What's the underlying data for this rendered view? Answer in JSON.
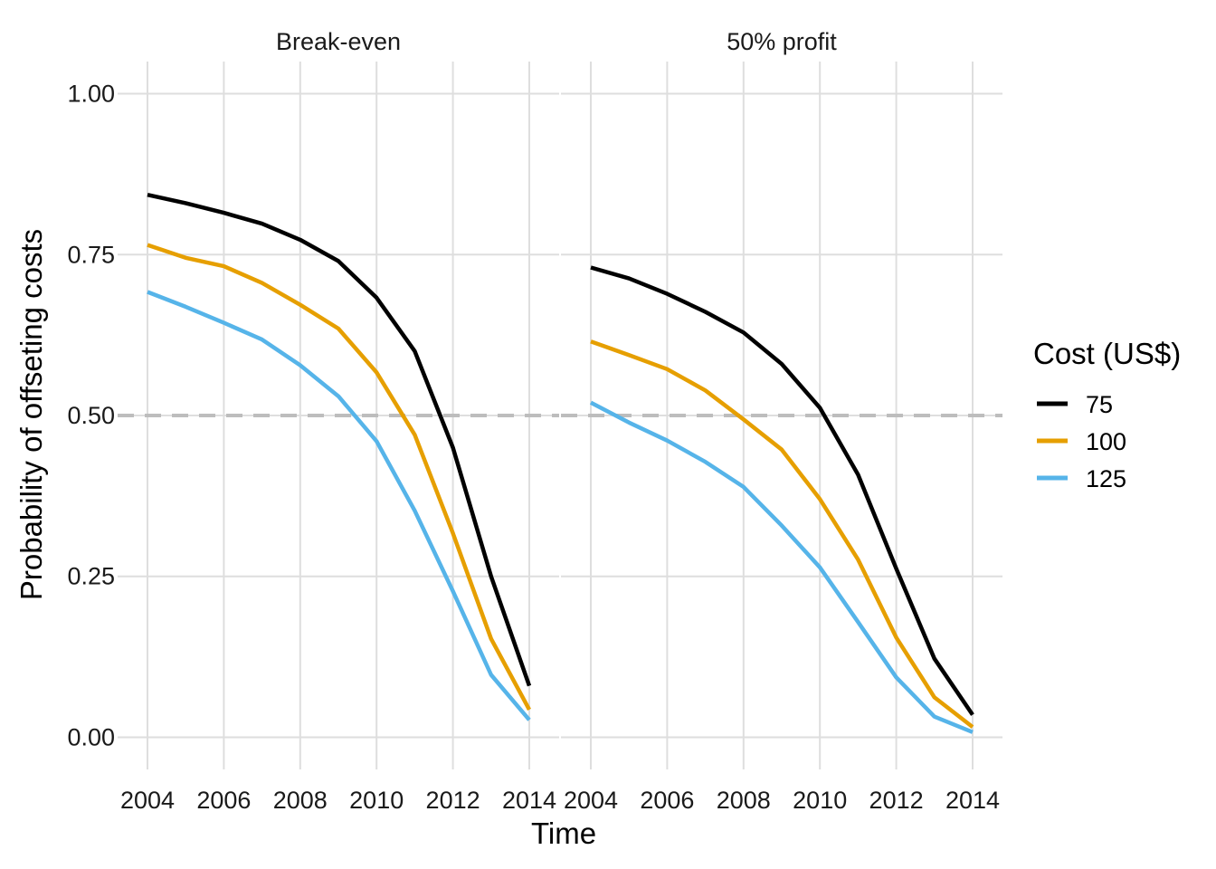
{
  "chart_data": {
    "type": "line",
    "xlabel": "Time",
    "ylabel": "Probability of offseting costs",
    "xlim": [
      2004,
      2014
    ],
    "ylim": [
      0,
      1
    ],
    "x_ticks": [
      2004,
      2006,
      2008,
      2010,
      2012,
      2014
    ],
    "y_ticks": [
      "0.00",
      "0.25",
      "0.50",
      "0.75",
      "1.00"
    ],
    "grid": true,
    "reference_line": {
      "y": 0.5,
      "style": "dashed",
      "color": "#bdbdbd"
    },
    "legend": {
      "title": "Cost (US$)",
      "placement": "right",
      "entries": [
        {
          "label": "75",
          "color": "#000000"
        },
        {
          "label": "100",
          "color": "#e69f00"
        },
        {
          "label": "125",
          "color": "#56b4e9"
        }
      ]
    },
    "x": [
      2004,
      2005,
      2006,
      2007,
      2008,
      2009,
      2010,
      2011,
      2012,
      2013,
      2014
    ],
    "facets": [
      {
        "title": "Break-even",
        "series": [
          {
            "name": "75",
            "color": "#000000",
            "values": [
              0.843,
              0.83,
              0.815,
              0.798,
              0.773,
              0.74,
              0.683,
              0.6,
              0.45,
              0.25,
              0.08
            ]
          },
          {
            "name": "100",
            "color": "#e69f00",
            "values": [
              0.765,
              0.745,
              0.732,
              0.706,
              0.672,
              0.635,
              0.567,
              0.47,
              0.317,
              0.153,
              0.043
            ]
          },
          {
            "name": "125",
            "color": "#56b4e9",
            "values": [
              0.692,
              0.669,
              0.644,
              0.618,
              0.578,
              0.53,
              0.46,
              0.352,
              0.227,
              0.097,
              0.027
            ]
          }
        ]
      },
      {
        "title": "50% profit",
        "series": [
          {
            "name": "75",
            "color": "#000000",
            "values": [
              0.73,
              0.713,
              0.689,
              0.661,
              0.629,
              0.58,
              0.512,
              0.408,
              0.262,
              0.122,
              0.035
            ]
          },
          {
            "name": "100",
            "color": "#e69f00",
            "values": [
              0.615,
              0.594,
              0.572,
              0.539,
              0.494,
              0.447,
              0.37,
              0.276,
              0.155,
              0.062,
              0.016
            ]
          },
          {
            "name": "125",
            "color": "#56b4e9",
            "values": [
              0.52,
              0.489,
              0.461,
              0.428,
              0.389,
              0.329,
              0.264,
              0.179,
              0.093,
              0.032,
              0.008
            ]
          }
        ]
      }
    ]
  }
}
